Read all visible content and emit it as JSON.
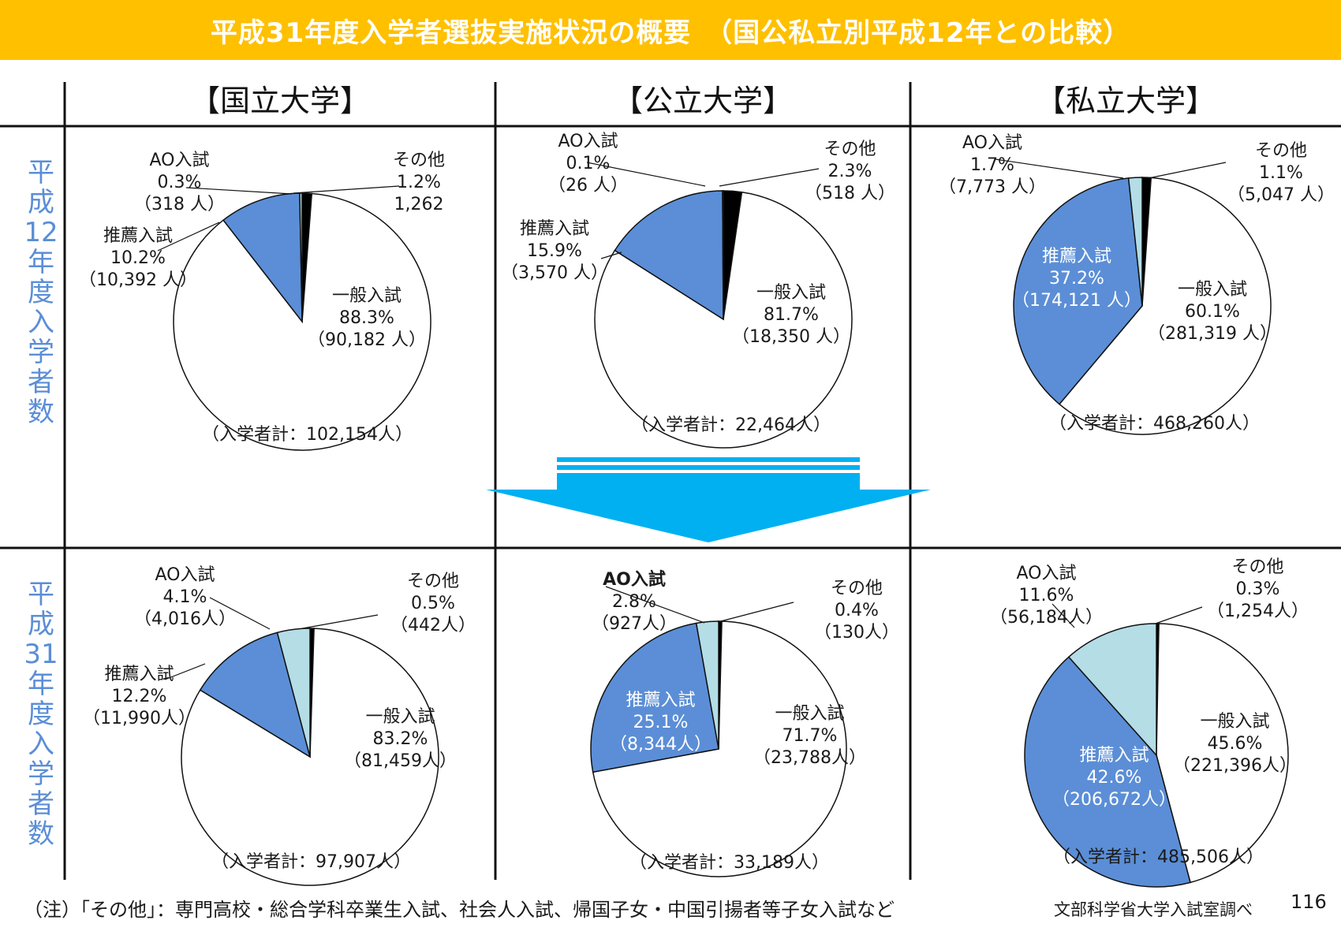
{
  "title": "平成31年度入学者選抜実施状況の概要　（国公私立別平成12年との比較）",
  "columns": [
    "【国立大学】",
    "【公立大学】",
    "【私立大学】"
  ],
  "rows": [
    {
      "chars": [
        "平",
        "成",
        "12",
        "年",
        "度",
        "入",
        "学",
        "者",
        "数"
      ]
    },
    {
      "chars": [
        "平",
        "成",
        "31",
        "年",
        "度",
        "入",
        "学",
        "者",
        "数"
      ]
    }
  ],
  "colors": {
    "banner": "#ffc000",
    "suisen": "#5b8ed6",
    "ao": "#b4dde6",
    "sonota": "#000000",
    "ippan": "#ffffff",
    "arrow": "#00b0f0",
    "row_label": "#5b8ed6"
  },
  "chart_data": [
    {
      "type": "pie",
      "panel": "国立大学 平成12年度",
      "total_label": "（入学者計：102,154人）",
      "slices": [
        {
          "name": "一般入試",
          "percent": 88.3,
          "count_label": "（90,182 人）"
        },
        {
          "name": "推薦入試",
          "percent": 10.2,
          "count_label": "（10,392 人）"
        },
        {
          "name": "AO入試",
          "percent": 0.3,
          "count_label": "（318 人）"
        },
        {
          "name": "その他",
          "percent": 1.2,
          "count_label": "1,262"
        }
      ]
    },
    {
      "type": "pie",
      "panel": "公立大学 平成12年度",
      "total_label": "（入学者計：22,464人）",
      "slices": [
        {
          "name": "一般入試",
          "percent": 81.7,
          "count_label": "（18,350 人）"
        },
        {
          "name": "推薦入試",
          "percent": 15.9,
          "count_label": "（3,570 人）"
        },
        {
          "name": "AO入試",
          "percent": 0.1,
          "count_label": "（26 人）"
        },
        {
          "name": "その他",
          "percent": 2.3,
          "count_label": "（518 人）"
        }
      ]
    },
    {
      "type": "pie",
      "panel": "私立大学 平成12年度",
      "total_label": "（入学者計：468,260人）",
      "slices": [
        {
          "name": "一般入試",
          "percent": 60.1,
          "count_label": "（281,319 人）"
        },
        {
          "name": "推薦入試",
          "percent": 37.2,
          "count_label": "（174,121 人）"
        },
        {
          "name": "AO入試",
          "percent": 1.7,
          "count_label": "（7,773 人）"
        },
        {
          "name": "その他",
          "percent": 1.1,
          "count_label": "（5,047 人）"
        }
      ]
    },
    {
      "type": "pie",
      "panel": "国立大学 平成31年度",
      "total_label": "（入学者計：97,907人）",
      "slices": [
        {
          "name": "一般入試",
          "percent": 83.2,
          "count_label": "（81,459人）"
        },
        {
          "name": "推薦入試",
          "percent": 12.2,
          "count_label": "（11,990人）"
        },
        {
          "name": "AO入試",
          "percent": 4.1,
          "count_label": "（4,016人）"
        },
        {
          "name": "その他",
          "percent": 0.5,
          "count_label": "（442人）"
        }
      ]
    },
    {
      "type": "pie",
      "panel": "公立大学 平成31年度",
      "total_label": "（入学者計：33,189人）",
      "slices": [
        {
          "name": "一般入試",
          "percent": 71.7,
          "count_label": "（23,788人）"
        },
        {
          "name": "推薦入試",
          "percent": 25.1,
          "count_label": "（8,344人）"
        },
        {
          "name": "AO入試",
          "percent": 2.8,
          "count_label": "（927人）"
        },
        {
          "name": "その他",
          "percent": 0.4,
          "count_label": "（130人）"
        }
      ]
    },
    {
      "type": "pie",
      "panel": "私立大学 平成31年度",
      "total_label": "（入学者計：485,506人）",
      "slices": [
        {
          "name": "一般入試",
          "percent": 45.6,
          "count_label": "（221,396人）"
        },
        {
          "name": "推薦入試",
          "percent": 42.6,
          "count_label": "（206,672人）"
        },
        {
          "name": "AO入試",
          "percent": 11.6,
          "count_label": "（56,184人）"
        },
        {
          "name": "その他",
          "percent": 0.3,
          "count_label": "（1,254人）"
        }
      ]
    }
  ],
  "footnote": "（注）「その他」：専門高校・総合学科卒業生入試、社会人入試、帰国子女・中国引揚者等子女入試など",
  "source": "文部科学省大学入試室調べ",
  "page_number": "116"
}
